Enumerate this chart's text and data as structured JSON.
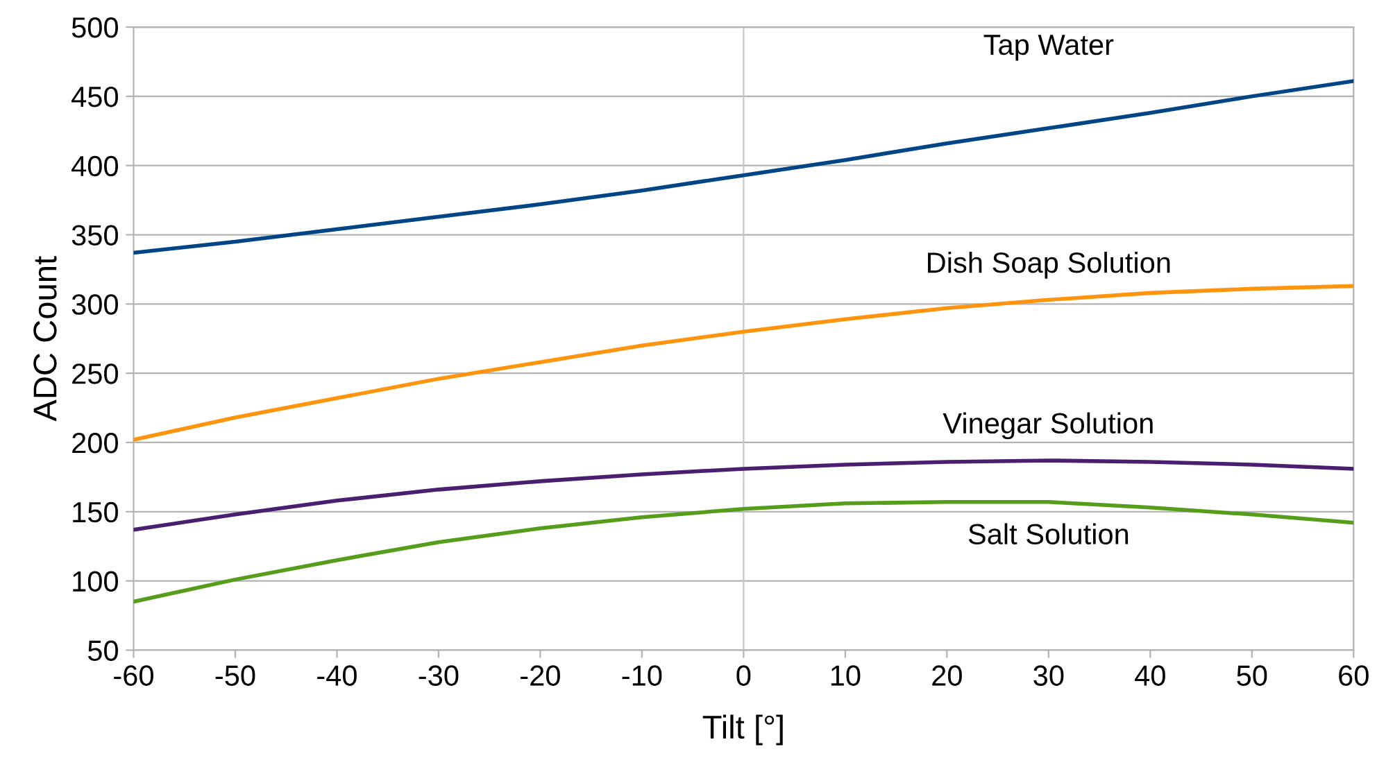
{
  "chart_data": {
    "type": "line",
    "xlabel": "Tilt [°]",
    "ylabel": "ADC Count",
    "x": [
      -60,
      -50,
      -40,
      -30,
      -20,
      -10,
      0,
      10,
      20,
      30,
      40,
      50,
      60
    ],
    "series": [
      {
        "name": "Tap Water",
        "color": "#004586",
        "values": [
          337,
          345,
          354,
          363,
          372,
          382,
          393,
          404,
          416,
          427,
          438,
          450,
          461
        ]
      },
      {
        "name": "Dish Soap Solution",
        "color": "#ff950e",
        "values": [
          202,
          218,
          232,
          246,
          258,
          270,
          280,
          289,
          297,
          303,
          308,
          311,
          313
        ]
      },
      {
        "name": "Vinegar Solution",
        "color": "#4b1f6f",
        "values": [
          137,
          148,
          158,
          166,
          172,
          177,
          181,
          184,
          186,
          187,
          186,
          184,
          181
        ]
      },
      {
        "name": "Salt Solution",
        "color": "#579d1c",
        "values": [
          85,
          101,
          115,
          128,
          138,
          146,
          152,
          156,
          157,
          157,
          153,
          148,
          142
        ]
      }
    ],
    "ref_lines": [
      {
        "axis": "x",
        "value": 0,
        "color": "#c8c8c8"
      }
    ],
    "xlim": [
      -60,
      60
    ],
    "xticks": [
      -60,
      -50,
      -40,
      -30,
      -20,
      -10,
      0,
      10,
      20,
      30,
      40,
      50,
      60
    ],
    "ylim": [
      50,
      500
    ],
    "yticks": [
      50,
      100,
      150,
      200,
      250,
      300,
      350,
      400,
      450,
      500
    ],
    "grid": "y",
    "legend": false,
    "marker": "none",
    "line_style": "solid"
  }
}
